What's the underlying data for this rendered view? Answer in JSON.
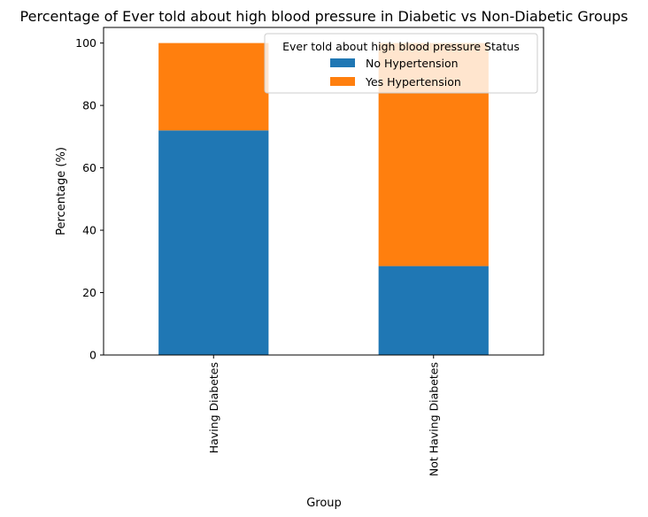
{
  "chart_data": {
    "type": "bar",
    "stacked": true,
    "title": "Percentage of Ever told about high blood pressure in Diabetic vs Non-Diabetic Groups",
    "xlabel": "Group",
    "ylabel": "Percentage (%)",
    "categories": [
      "Having Diabetes",
      "Not Having Diabetes"
    ],
    "ylim": [
      0,
      105
    ],
    "yticks": [
      0,
      20,
      40,
      60,
      80,
      100
    ],
    "legend": {
      "title": "Ever told about high blood pressure Status",
      "placement": "top-right"
    },
    "series": [
      {
        "name": "No Hypertension",
        "values": [
          72,
          28.5
        ],
        "color": "#1f77b4"
      },
      {
        "name": "Yes Hypertension",
        "values": [
          28,
          71.5
        ],
        "color": "#ff7f0e"
      }
    ],
    "grid": false
  }
}
